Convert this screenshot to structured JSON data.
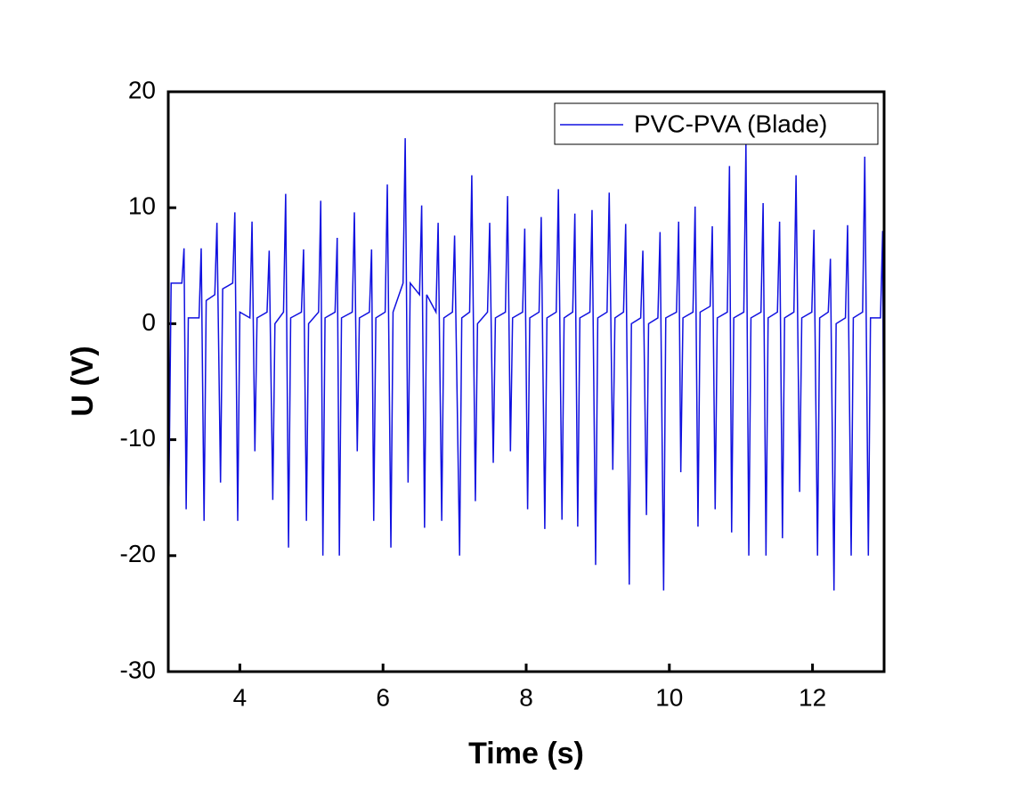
{
  "chart_data": {
    "type": "line",
    "x_label": "Time (s)",
    "y_label": "U (V)",
    "xlim": [
      3,
      13
    ],
    "ylim": [
      -30,
      20
    ],
    "xticks": [
      4,
      6,
      8,
      10,
      12
    ],
    "yticks": [
      -30,
      -20,
      -10,
      0,
      10,
      20
    ],
    "legend": "top-right",
    "grid": false,
    "x": [
      3.0,
      3.01,
      3.04,
      3.19,
      3.22,
      3.25,
      3.28,
      3.43,
      3.46,
      3.5,
      3.53,
      3.65,
      3.68,
      3.73,
      3.76,
      3.9,
      3.93,
      3.97,
      4.0,
      4.14,
      4.17,
      4.21,
      4.24,
      4.38,
      4.41,
      4.46,
      4.49,
      4.61,
      4.64,
      4.68,
      4.71,
      4.86,
      4.89,
      4.93,
      4.96,
      5.1,
      5.13,
      5.16,
      5.19,
      5.33,
      5.36,
      5.39,
      5.42,
      5.57,
      5.6,
      5.64,
      5.67,
      5.81,
      5.84,
      5.87,
      5.9,
      6.03,
      6.06,
      6.11,
      6.14,
      6.28,
      6.31,
      6.35,
      6.38,
      6.51,
      6.54,
      6.58,
      6.61,
      6.74,
      6.77,
      6.82,
      6.85,
      6.97,
      7.0,
      7.07,
      7.1,
      7.21,
      7.24,
      7.29,
      7.32,
      7.46,
      7.49,
      7.54,
      7.57,
      7.71,
      7.74,
      7.78,
      7.81,
      7.95,
      7.98,
      8.02,
      8.05,
      8.18,
      8.21,
      8.26,
      8.29,
      8.42,
      8.45,
      8.5,
      8.53,
      8.65,
      8.68,
      8.72,
      8.75,
      8.89,
      8.92,
      8.97,
      9.0,
      9.13,
      9.16,
      9.21,
      9.24,
      9.36,
      9.39,
      9.44,
      9.47,
      9.6,
      9.63,
      9.68,
      9.71,
      9.84,
      9.87,
      9.92,
      9.95,
      10.1,
      10.13,
      10.16,
      10.19,
      10.33,
      10.36,
      10.4,
      10.43,
      10.57,
      10.6,
      10.64,
      10.67,
      10.81,
      10.84,
      10.87,
      10.9,
      11.04,
      11.07,
      11.11,
      11.14,
      11.28,
      11.31,
      11.35,
      11.38,
      11.51,
      11.54,
      11.58,
      11.61,
      11.74,
      11.77,
      11.82,
      11.85,
      11.99,
      12.02,
      12.07,
      12.1,
      12.22,
      12.25,
      12.3,
      12.33,
      12.46,
      12.49,
      12.54,
      12.57,
      12.7,
      12.73,
      12.78,
      12.81,
      12.95,
      12.98,
      13.0
    ],
    "series": [
      {
        "name": "PVC-PVA (Blade)",
        "color": "#1010e0",
        "values": [
          9,
          -14,
          3.5,
          3.5,
          6.5,
          -16,
          0.5,
          0.5,
          6.5,
          -17,
          2,
          2.5,
          8.7,
          -13.7,
          3,
          3.5,
          9.6,
          -17,
          1,
          0.5,
          8.8,
          -11,
          0.5,
          1,
          6.3,
          -15.2,
          0,
          1,
          11.2,
          -19.3,
          0.5,
          1,
          6.4,
          -17,
          0,
          1,
          10.6,
          -20,
          0.5,
          1,
          7.4,
          -20,
          0.5,
          1,
          9.6,
          -11,
          0.5,
          1,
          6.4,
          -17,
          0.5,
          1,
          12,
          -19.3,
          1,
          3.5,
          16,
          -13.7,
          3.5,
          2.5,
          10.2,
          -17.6,
          2.5,
          1,
          8.7,
          -17,
          0.5,
          1,
          7.6,
          -20,
          0.5,
          1,
          12.8,
          -15.3,
          0,
          1,
          8.7,
          -12,
          0.5,
          1,
          11,
          -11,
          0.5,
          1,
          8.2,
          -16,
          0.5,
          1,
          9.2,
          -17.7,
          0.5,
          1,
          11.6,
          -16.9,
          0.5,
          1,
          9.5,
          -17.5,
          0.5,
          1,
          9.8,
          -20.8,
          0.5,
          1,
          11.3,
          -12.6,
          0.5,
          1,
          8.6,
          -22.5,
          0,
          0.5,
          6.3,
          -16.5,
          0,
          0.5,
          7.9,
          -23,
          0.5,
          1,
          8.8,
          -12.8,
          0.5,
          1,
          10.1,
          -17.5,
          1,
          1.5,
          8.4,
          -16,
          0.5,
          1,
          13.6,
          -18,
          0.5,
          1,
          15.5,
          -20,
          0.5,
          1,
          10.4,
          -20,
          0.5,
          1,
          8.8,
          -18.5,
          0.5,
          1,
          12.8,
          -14.5,
          0.5,
          1,
          8.1,
          -20,
          0.5,
          1,
          5.6,
          -23,
          0,
          0.5,
          8.5,
          -20,
          0.5,
          1,
          14.4,
          -20,
          0.5,
          0.5,
          8,
          -21
        ]
      }
    ]
  }
}
